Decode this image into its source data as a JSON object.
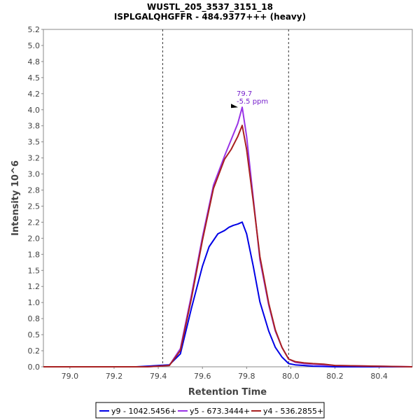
{
  "chart_data": {
    "type": "line",
    "title": "WUSTL_205_3537_3151_18",
    "subtitle": "ISPLGALQHGFFR - 484.9377+++ (heavy)",
    "xlabel": "Retention Time",
    "ylabel": "Intensity 10^6",
    "xlim": [
      78.88,
      80.55
    ],
    "ylim": [
      0,
      5.2
    ],
    "xticks": [
      "79.0",
      "79.2",
      "79.4",
      "79.6",
      "79.8",
      "80.0",
      "80.2",
      "80.4"
    ],
    "yticks": [
      "0.0",
      "0.2",
      "0.5",
      "0.8",
      "1.0",
      "1.2",
      "1.5",
      "1.8",
      "2.0",
      "2.2",
      "2.5",
      "2.8",
      "3.0",
      "3.2",
      "3.5",
      "3.8",
      "4.0",
      "4.2",
      "4.5",
      "4.8",
      "5.0",
      "5.2"
    ],
    "boundaries": [
      79.42,
      79.99
    ],
    "annotation": {
      "rt": "79.7",
      "ppm": "-5.5 ppm",
      "x": 79.78,
      "y": 4.0
    },
    "series": [
      {
        "name": "y9 - 1042.5456+",
        "color": "#0000e6",
        "x": [
          78.88,
          79.3,
          79.35,
          79.4,
          79.45,
          79.5,
          79.55,
          79.6,
          79.63,
          79.67,
          79.7,
          79.72,
          79.74,
          79.76,
          79.78,
          79.8,
          79.83,
          79.86,
          79.9,
          79.93,
          79.96,
          79.99,
          80.02,
          80.06,
          80.1,
          80.2,
          80.55
        ],
        "y": [
          0.0,
          0.0,
          0.01,
          0.02,
          0.03,
          0.2,
          0.9,
          1.55,
          1.85,
          2.05,
          2.1,
          2.15,
          2.18,
          2.2,
          2.23,
          2.05,
          1.55,
          1.0,
          0.55,
          0.3,
          0.15,
          0.05,
          0.03,
          0.02,
          0.01,
          0.0,
          0.0
        ]
      },
      {
        "name": "y5 - 673.3444+",
        "color": "#9933e6",
        "x": [
          78.88,
          79.35,
          79.4,
          79.45,
          79.5,
          79.55,
          79.6,
          79.65,
          79.7,
          79.73,
          79.76,
          79.78,
          79.8,
          79.83,
          79.86,
          79.9,
          79.93,
          79.96,
          79.99,
          80.02,
          80.06,
          80.1,
          80.15,
          80.2,
          80.55
        ],
        "y": [
          0.0,
          0.0,
          0.01,
          0.02,
          0.28,
          1.1,
          2.0,
          2.8,
          3.25,
          3.5,
          3.75,
          4.0,
          3.55,
          2.6,
          1.65,
          0.95,
          0.55,
          0.3,
          0.12,
          0.07,
          0.05,
          0.04,
          0.03,
          0.02,
          0.0
        ]
      },
      {
        "name": "y4 - 536.2855+",
        "color": "#a82020",
        "x": [
          78.88,
          79.35,
          79.4,
          79.45,
          79.5,
          79.55,
          79.6,
          79.65,
          79.7,
          79.73,
          79.76,
          79.78,
          79.8,
          79.83,
          79.86,
          79.9,
          79.93,
          79.96,
          79.99,
          80.02,
          80.06,
          80.1,
          80.15,
          80.2,
          80.55
        ],
        "y": [
          0.0,
          0.0,
          0.01,
          0.02,
          0.25,
          1.05,
          1.95,
          2.75,
          3.2,
          3.35,
          3.55,
          3.72,
          3.35,
          2.55,
          1.7,
          0.98,
          0.57,
          0.3,
          0.12,
          0.08,
          0.06,
          0.05,
          0.04,
          0.02,
          0.0
        ]
      }
    ]
  }
}
